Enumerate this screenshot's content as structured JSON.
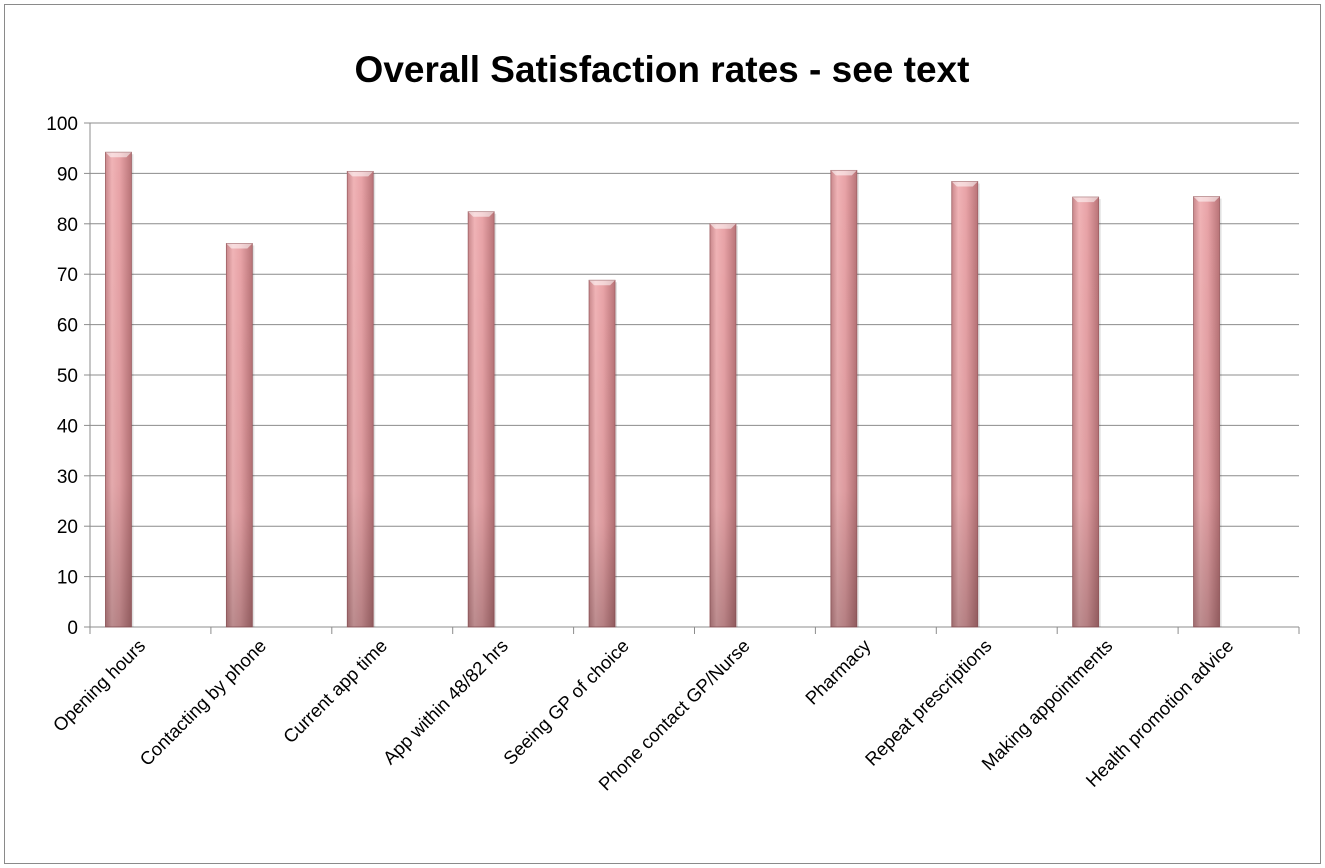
{
  "chart_data": {
    "type": "bar",
    "title": "Overall Satisfaction rates - see text",
    "xlabel": "",
    "ylabel": "",
    "categories": [
      "Opening hours",
      "Contacting by phone",
      "Current app time",
      "App within 48/82 hrs",
      "Seeing GP of choice",
      "Phone contact GP/Nurse",
      "Pharmacy",
      "Repeat prescriptions",
      "Making appointments",
      "Health promotion advice"
    ],
    "values": [
      94.2,
      76.1,
      90.4,
      82.4,
      68.8,
      80.0,
      90.6,
      88.4,
      85.3,
      85.4
    ],
    "ylim": [
      0,
      100
    ],
    "yticks": [
      0,
      10,
      20,
      30,
      40,
      50,
      60,
      70,
      80,
      90,
      100
    ],
    "grid": true,
    "legend": "none",
    "bar_color": "#e6a0a3",
    "bar_shadow_color": "#a06a6e"
  }
}
